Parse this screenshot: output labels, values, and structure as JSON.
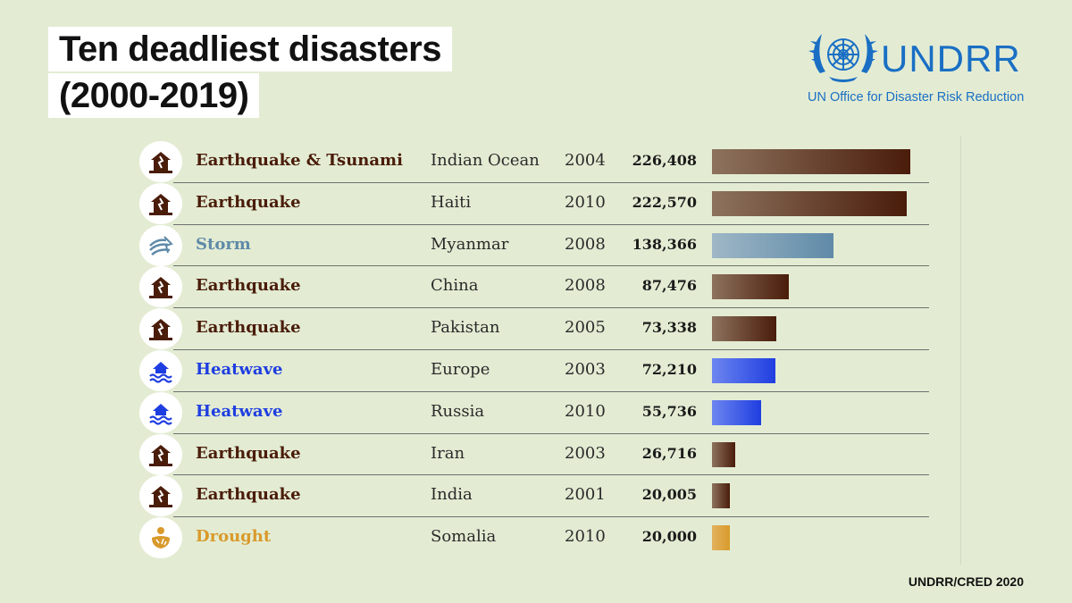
{
  "title": {
    "line1": "Ten deadliest disasters",
    "line2": "(2000-2019)"
  },
  "logo": {
    "name": "UNDRR",
    "subtitle": "UN Office for Disaster Risk Reduction",
    "icon": "un-emblem-icon",
    "color": "#1a6fc4"
  },
  "source": "UNDRR/CRED 2020",
  "colors": {
    "earthquake": "#4a1c0a",
    "storm": "#5f8aa8",
    "heatwave": "#1f3ee0",
    "drought": "#d99a2b"
  },
  "chart_data": {
    "type": "bar",
    "orientation": "horizontal",
    "title": "Ten deadliest disasters (2000-2019)",
    "xlim": [
      0,
      226408
    ],
    "rows": [
      {
        "type": "Earthquake & Tsunami",
        "category": "earthquake",
        "icon": "earthquake-icon",
        "region": "Indian Ocean",
        "year": "2004",
        "deaths": 226408,
        "label": "226,408"
      },
      {
        "type": "Earthquake",
        "category": "earthquake",
        "icon": "earthquake-icon",
        "region": "Haiti",
        "year": "2010",
        "deaths": 222570,
        "label": "222,570"
      },
      {
        "type": "Storm",
        "category": "storm",
        "icon": "storm-icon",
        "region": "Myanmar",
        "year": "2008",
        "deaths": 138366,
        "label": "138,366"
      },
      {
        "type": "Earthquake",
        "category": "earthquake",
        "icon": "earthquake-icon",
        "region": "China",
        "year": "2008",
        "deaths": 87476,
        "label": "87,476"
      },
      {
        "type": "Earthquake",
        "category": "earthquake",
        "icon": "earthquake-icon",
        "region": "Pakistan",
        "year": "2005",
        "deaths": 73338,
        "label": "73,338"
      },
      {
        "type": "Heatwave",
        "category": "heatwave",
        "icon": "heatwave-icon",
        "region": "Europe",
        "year": "2003",
        "deaths": 72210,
        "label": "72,210"
      },
      {
        "type": "Heatwave",
        "category": "heatwave",
        "icon": "heatwave-icon",
        "region": "Russia",
        "year": "2010",
        "deaths": 55736,
        "label": "55,736"
      },
      {
        "type": "Earthquake",
        "category": "earthquake",
        "icon": "earthquake-icon",
        "region": "Iran",
        "year": "2003",
        "deaths": 26716,
        "label": "26,716"
      },
      {
        "type": "Earthquake",
        "category": "earthquake",
        "icon": "earthquake-icon",
        "region": "India",
        "year": "2001",
        "deaths": 20005,
        "label": "20,005"
      },
      {
        "type": "Drought",
        "category": "drought",
        "icon": "drought-icon",
        "region": "Somalia",
        "year": "2010",
        "deaths": 20000,
        "label": "20,000"
      }
    ]
  }
}
